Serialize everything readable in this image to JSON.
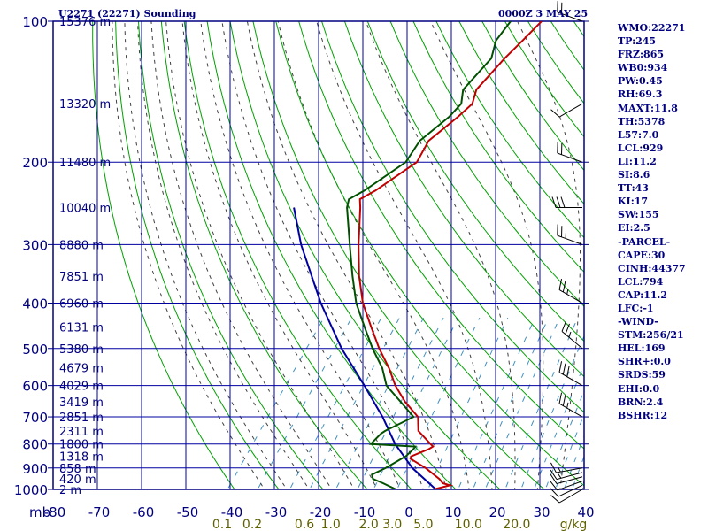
{
  "header": {
    "station": "U2271 (22271) Sounding",
    "time": "0000Z  3 MAY 25"
  },
  "indices": [
    "WMO:22271",
    "TP:245",
    "FRZ:865",
    "WB0:934",
    "PW:0.45",
    "RH:69.3",
    "MAXT:11.8",
    "TH:5378",
    "L57:7.0",
    "LCL:929",
    "LI:11.2",
    "SI:8.6",
    "TT:43",
    "KI:17",
    "SW:155",
    "EI:2.5",
    "-PARCEL-",
    "CAPE:30",
    "CINH:44377",
    "LCL:794",
    "CAP:11.2",
    "LFC:-1",
    "-WIND-",
    "STM:256/21",
    "HEL:169",
    "SHR+:0.0",
    "SRDS:59",
    "EHI:0.0",
    "BRN:2.4",
    "BSHR:12"
  ],
  "colors": {
    "frame": "#000080",
    "isobar": "#0000a0",
    "dry_adiabat": "#00a000",
    "moist_adiabat": "#404040",
    "mixing_ratio": "#4090c0",
    "temperature": "#c00000",
    "dewpoint": "#005000",
    "parcel": "#0000a0",
    "mixing_label": "#606000"
  },
  "chart_data": {
    "type": "skew-t log-p sounding",
    "pressure_levels_mb": [
      100,
      200,
      300,
      400,
      500,
      600,
      700,
      800,
      900,
      1000
    ],
    "x_unit_label": "mb",
    "temperature_ticks_c": [
      -80,
      -70,
      -60,
      -50,
      -40,
      -30,
      -20,
      -10,
      0,
      10,
      20,
      30,
      40
    ],
    "temperature_tick_labels": [
      "-80",
      "-70",
      "-60",
      "-50",
      "-40",
      "-30",
      "-20",
      "-10",
      "0",
      "10",
      "20",
      "30",
      "40"
    ],
    "mixing_ratio_labels": [
      "0.1",
      "0.2",
      "0.6",
      "1.0",
      "2.0",
      "3.0",
      "5.0",
      "10.0",
      "20.0"
    ],
    "mixing_ratio_unit": "g/kg",
    "height_labels": [
      {
        "p": 100,
        "label": "15376 m"
      },
      {
        "p": 150,
        "label": "13320 m"
      },
      {
        "p": 200,
        "label": "11480 m"
      },
      {
        "p": 250,
        "label": "10040 m"
      },
      {
        "p": 300,
        "label": "8880 m"
      },
      {
        "p": 350,
        "label": "7851 m"
      },
      {
        "p": 400,
        "label": "6960 m"
      },
      {
        "p": 450,
        "label": "6131 m"
      },
      {
        "p": 500,
        "label": "5380 m"
      },
      {
        "p": 550,
        "label": "4679 m"
      },
      {
        "p": 600,
        "label": "4029 m"
      },
      {
        "p": 650,
        "label": "3419 m"
      },
      {
        "p": 700,
        "label": "2851 m"
      },
      {
        "p": 750,
        "label": "2311 m"
      },
      {
        "p": 800,
        "label": "1800 m"
      },
      {
        "p": 850,
        "label": "1318 m"
      },
      {
        "p": 900,
        "label": "858 m"
      },
      {
        "p": 950,
        "label": "420 m"
      },
      {
        "p": 1000,
        "label": "2 m"
      }
    ],
    "temperature_profile": [
      [
        1000,
        5.0
      ],
      [
        980,
        8.0
      ],
      [
        970,
        6.0
      ],
      [
        950,
        4.5
      ],
      [
        900,
        -0.5
      ],
      [
        860,
        -5.5
      ],
      [
        850,
        -5.8
      ],
      [
        820,
        -3.0
      ],
      [
        810,
        -2.5
      ],
      [
        800,
        -3.5
      ],
      [
        750,
        -8.5
      ],
      [
        700,
        -11.0
      ],
      [
        650,
        -16.5
      ],
      [
        600,
        -21.5
      ],
      [
        550,
        -26.0
      ],
      [
        500,
        -31.5
      ],
      [
        450,
        -37.0
      ],
      [
        400,
        -43.0
      ],
      [
        350,
        -48.5
      ],
      [
        300,
        -54.0
      ],
      [
        250,
        -60.0
      ],
      [
        240,
        -61.5
      ],
      [
        230,
        -59.5
      ],
      [
        200,
        -55.0
      ],
      [
        180,
        -56.0
      ],
      [
        160,
        -53.5
      ],
      [
        150,
        -52.5
      ],
      [
        140,
        -54.0
      ],
      [
        120,
        -53.0
      ],
      [
        110,
        -52.0
      ],
      [
        100,
        -51.0
      ]
    ],
    "dewpoint_profile": [
      [
        1000,
        -3.5
      ],
      [
        970,
        -7.5
      ],
      [
        950,
        -10.5
      ],
      [
        930,
        -11.5
      ],
      [
        900,
        -9.5
      ],
      [
        860,
        -7.5
      ],
      [
        850,
        -7.0
      ],
      [
        820,
        -6.5
      ],
      [
        810,
        -6.5
      ],
      [
        800,
        -17.0
      ],
      [
        760,
        -16.5
      ],
      [
        750,
        -16.0
      ],
      [
        700,
        -12.0
      ],
      [
        650,
        -17.5
      ],
      [
        600,
        -23.5
      ],
      [
        550,
        -27.5
      ],
      [
        500,
        -33.0
      ],
      [
        450,
        -38.5
      ],
      [
        400,
        -44.5
      ],
      [
        350,
        -50.0
      ],
      [
        300,
        -56.0
      ],
      [
        250,
        -63.0
      ],
      [
        240,
        -64.0
      ],
      [
        230,
        -62.0
      ],
      [
        200,
        -57.5
      ],
      [
        180,
        -58.0
      ],
      [
        160,
        -55.5
      ],
      [
        150,
        -55.0
      ],
      [
        140,
        -57.0
      ],
      [
        120,
        -56.0
      ],
      [
        110,
        -58.0
      ],
      [
        100,
        -58.0
      ]
    ],
    "parcel_profile": [
      [
        1000,
        5.5
      ],
      [
        900,
        -3.5
      ],
      [
        800,
        -11.5
      ],
      [
        700,
        -19.0
      ],
      [
        600,
        -28.5
      ],
      [
        500,
        -40.0
      ],
      [
        400,
        -52.5
      ],
      [
        300,
        -67.0
      ],
      [
        250,
        -75.0
      ]
    ],
    "wind_barbs": [
      {
        "p": 1000,
        "dir": 240,
        "kt": 10
      },
      {
        "p": 980,
        "dir": 245,
        "kt": 12
      },
      {
        "p": 960,
        "dir": 250,
        "kt": 14
      },
      {
        "p": 940,
        "dir": 255,
        "kt": 14
      },
      {
        "p": 920,
        "dir": 255,
        "kt": 15
      },
      {
        "p": 900,
        "dir": 260,
        "kt": 15
      },
      {
        "p": 700,
        "dir": 300,
        "kt": 25
      },
      {
        "p": 600,
        "dir": 300,
        "kt": 30
      },
      {
        "p": 500,
        "dir": 310,
        "kt": 25
      },
      {
        "p": 400,
        "dir": 300,
        "kt": 25
      },
      {
        "p": 300,
        "dir": 290,
        "kt": 25
      },
      {
        "p": 250,
        "dir": 270,
        "kt": 30
      },
      {
        "p": 200,
        "dir": 290,
        "kt": 20
      },
      {
        "p": 150,
        "dir": 240,
        "kt": 10
      },
      {
        "p": 100,
        "dir": 290,
        "kt": 25
      }
    ]
  }
}
